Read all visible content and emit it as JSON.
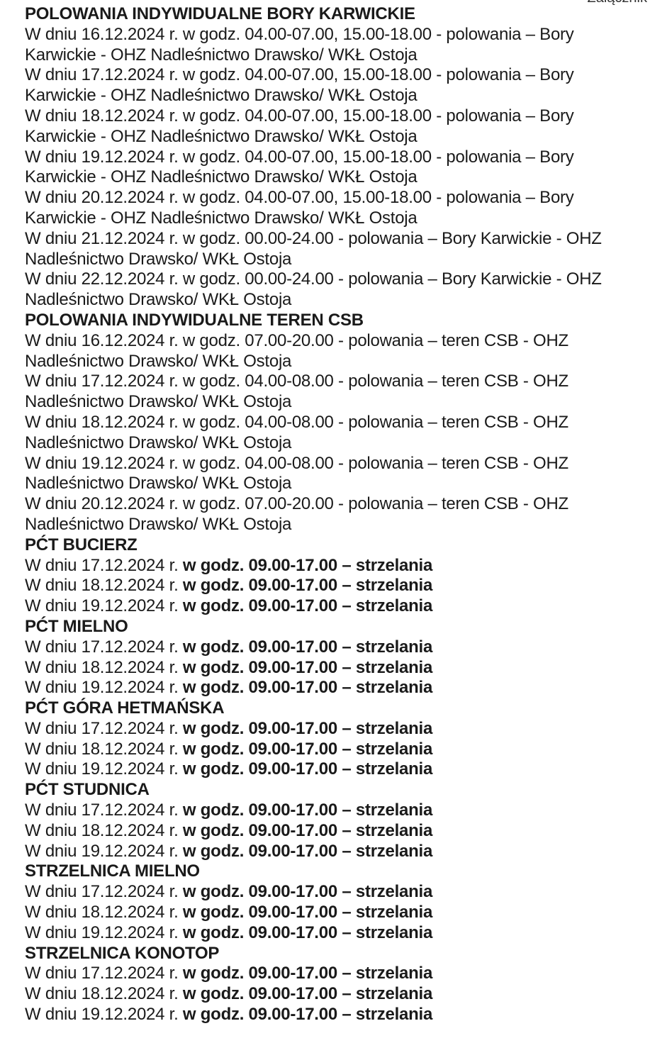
{
  "corner_label": "Załącznik",
  "sections": [
    {
      "heading": "POLOWANIA INDYWIDUALNE BORY KARWICKIE",
      "entries": [
        {
          "lines": [
            "W dniu 16.12.2024 r. w godz. 04.00-07.00, 15.00-18.00 - polowania – Bory",
            "Karwickie - OHZ Nadleśnictwo Drawsko/ WKŁ Ostoja"
          ]
        },
        {
          "lines": [
            "W dniu 17.12.2024 r. w godz. 04.00-07.00, 15.00-18.00 - polowania – Bory",
            "Karwickie - OHZ Nadleśnictwo Drawsko/ WKŁ Ostoja"
          ]
        },
        {
          "lines": [
            "W dniu 18.12.2024 r. w godz. 04.00-07.00, 15.00-18.00 - polowania – Bory",
            "Karwickie - OHZ Nadleśnictwo Drawsko/ WKŁ Ostoja"
          ]
        },
        {
          "lines": [
            "W dniu 19.12.2024 r. w godz. 04.00-07.00, 15.00-18.00 - polowania – Bory",
            "Karwickie - OHZ Nadleśnictwo Drawsko/ WKŁ Ostoja"
          ]
        },
        {
          "lines": [
            "W dniu 20.12.2024 r. w godz. 04.00-07.00, 15.00-18.00 - polowania – Bory",
            "Karwickie - OHZ Nadleśnictwo Drawsko/ WKŁ Ostoja"
          ]
        },
        {
          "lines": [
            "W dniu 21.12.2024 r. w godz. 00.00-24.00 - polowania – Bory Karwickie - OHZ",
            "Nadleśnictwo Drawsko/ WKŁ Ostoja"
          ]
        },
        {
          "lines": [
            "W dniu 22.12.2024 r. w godz. 00.00-24.00 - polowania – Bory Karwickie - OHZ",
            "Nadleśnictwo Drawsko/ WKŁ Ostoja"
          ]
        }
      ]
    },
    {
      "heading": "POLOWANIA INDYWIDUALNE TEREN CSB",
      "entries": [
        {
          "lines": [
            "W dniu 16.12.2024 r. w godz. 07.00-20.00 - polowania – teren CSB - OHZ",
            "Nadleśnictwo Drawsko/ WKŁ Ostoja"
          ]
        },
        {
          "lines": [
            "W dniu 17.12.2024 r. w godz. 04.00-08.00 - polowania – teren CSB - OHZ",
            "Nadleśnictwo Drawsko/ WKŁ Ostoja"
          ]
        },
        {
          "lines": [
            "W dniu 18.12.2024 r. w godz. 04.00-08.00 - polowania – teren CSB - OHZ",
            "Nadleśnictwo Drawsko/ WKŁ Ostoja"
          ]
        },
        {
          "lines": [
            "W dniu 19.12.2024 r. w godz. 04.00-08.00 - polowania – teren CSB - OHZ",
            "Nadleśnictwo Drawsko/ WKŁ Ostoja"
          ]
        },
        {
          "lines": [
            "W dniu 20.12.2024 r. w godz. 07.00-20.00 - polowania – teren CSB - OHZ",
            "Nadleśnictwo Drawsko/ WKŁ Ostoja"
          ]
        }
      ]
    },
    {
      "heading": "PĆT BUCIERZ",
      "entries": [
        {
          "normal": "W dniu 17.12.2024 r. ",
          "bold": "w godz. 09.00-17.00 – strzelania"
        },
        {
          "normal": "W dniu 18.12.2024 r. ",
          "bold": "w godz. 09.00-17.00 – strzelania"
        },
        {
          "normal": "W dniu 19.12.2024 r. ",
          "bold": "w godz. 09.00-17.00 – strzelania"
        }
      ]
    },
    {
      "heading": "PĆT MIELNO",
      "entries": [
        {
          "normal": "W dniu 17.12.2024 r. ",
          "bold": "w godz. 09.00-17.00 – strzelania"
        },
        {
          "normal": "W dniu 18.12.2024 r. ",
          "bold": "w godz. 09.00-17.00 – strzelania"
        },
        {
          "normal": "W dniu 19.12.2024 r. ",
          "bold": "w godz. 09.00-17.00 – strzelania"
        }
      ]
    },
    {
      "heading": "PĆT GÓRA HETMAŃSKA",
      "entries": [
        {
          "normal": "W dniu 17.12.2024 r. ",
          "bold": "w godz. 09.00-17.00 – strzelania"
        },
        {
          "normal": "W dniu 18.12.2024 r. ",
          "bold": "w godz. 09.00-17.00 – strzelania"
        },
        {
          "normal": "W dniu 19.12.2024 r. ",
          "bold": "w godz. 09.00-17.00 – strzelania"
        }
      ]
    },
    {
      "heading": "PĆT STUDNICA",
      "entries": [
        {
          "normal": "W dniu 17.12.2024 r. ",
          "bold": "w godz. 09.00-17.00 – strzelania"
        },
        {
          "normal": "W dniu 18.12.2024 r. ",
          "bold": "w godz. 09.00-17.00 – strzelania"
        },
        {
          "normal": "W dniu 19.12.2024 r. ",
          "bold": "w godz. 09.00-17.00 – strzelania"
        }
      ]
    },
    {
      "heading": "STRZELNICA MIELNO",
      "entries": [
        {
          "normal": "W dniu 17.12.2024 r. ",
          "bold": "w godz. 09.00-17.00 – strzelania"
        },
        {
          "normal": "W dniu 18.12.2024 r. ",
          "bold": "w godz. 09.00-17.00 – strzelania"
        },
        {
          "normal": "W dniu 19.12.2024 r. ",
          "bold": "w godz. 09.00-17.00 – strzelania"
        }
      ]
    },
    {
      "heading": "STRZELNICA KONOTOP",
      "entries": [
        {
          "normal": "W dniu 17.12.2024 r. ",
          "bold": "w godz. 09.00-17.00 – strzelania"
        },
        {
          "normal": "W dniu 18.12.2024 r. ",
          "bold": "w godz. 09.00-17.00 – strzelania"
        },
        {
          "normal": "W dniu 19.12.2024 r. ",
          "bold": "w godz. 09.00-17.00 – strzelania"
        }
      ]
    }
  ]
}
